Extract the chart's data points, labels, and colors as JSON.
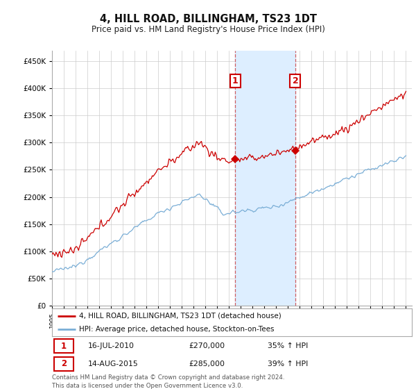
{
  "title": "4, HILL ROAD, BILLINGHAM, TS23 1DT",
  "subtitle": "Price paid vs. HM Land Registry's House Price Index (HPI)",
  "hpi_label": "HPI: Average price, detached house, Stockton-on-Tees",
  "price_label": "4, HILL ROAD, BILLINGHAM, TS23 1DT (detached house)",
  "annotation1": {
    "num": "1",
    "date": "16-JUL-2010",
    "price": "£270,000",
    "hpi": "35% ↑ HPI",
    "x_year": 2010.54,
    "y_val": 270000
  },
  "annotation2": {
    "num": "2",
    "date": "14-AUG-2015",
    "price": "£285,000",
    "hpi": "39% ↑ HPI",
    "x_year": 2015.62,
    "y_val": 285000
  },
  "price_color": "#cc0000",
  "hpi_color": "#7aaed6",
  "shade_color": "#ddeeff",
  "ylim": [
    0,
    470000
  ],
  "xlim_start": 1995.0,
  "xlim_end": 2025.5,
  "footer": "Contains HM Land Registry data © Crown copyright and database right 2024.\nThis data is licensed under the Open Government Licence v3.0.",
  "background_color": "#ffffff",
  "grid_color": "#cccccc"
}
